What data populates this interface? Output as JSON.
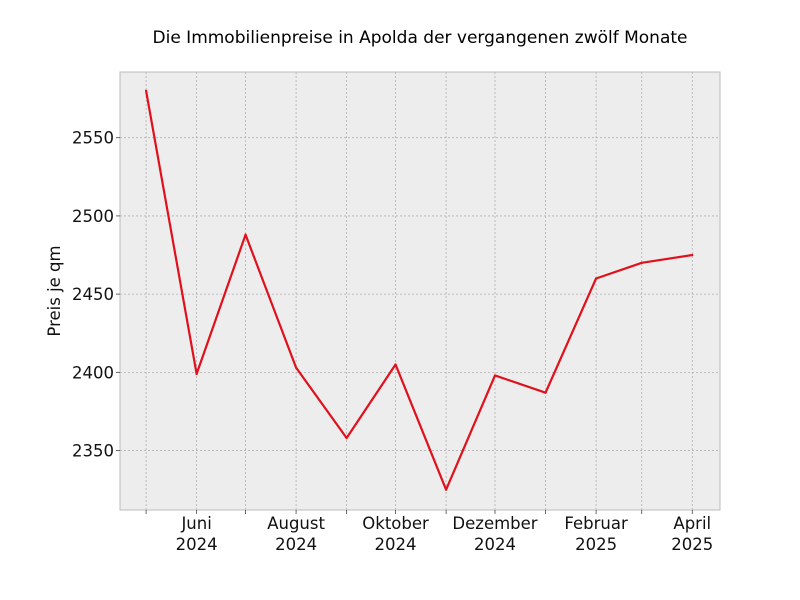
{
  "chart_data": {
    "type": "line",
    "title": "Die Immobilienpreise in Apolda der vergangenen zwölf Monate",
    "xlabel": "",
    "ylabel": "Preis je qm",
    "x": [
      "2024-05",
      "2024-06",
      "2024-07",
      "2024-08",
      "2024-09",
      "2024-10",
      "2024-11",
      "2024-12",
      "2025-01",
      "2025-02",
      "2025-03",
      "2025-04"
    ],
    "series": [
      {
        "values": [
          2580,
          2399,
          2488,
          2403,
          2358,
          2405,
          2325,
          2398,
          2387,
          2460,
          2470,
          2475
        ],
        "color": "#e0101c"
      }
    ],
    "x_tick_labels": [
      {
        "x": "2024-06",
        "line1": "Juni",
        "line2": "2024"
      },
      {
        "x": "2024-08",
        "line1": "August",
        "line2": "2024"
      },
      {
        "x": "2024-10",
        "line1": "Oktober",
        "line2": "2024"
      },
      {
        "x": "2024-12",
        "line1": "Dezember",
        "line2": "2024"
      },
      {
        "x": "2025-02",
        "line1": "Februar",
        "line2": "2025"
      },
      {
        "x": "2025-04",
        "line1": "April",
        "line2": "2025"
      }
    ],
    "y_ticks": [
      2350,
      2400,
      2450,
      2500,
      2550
    ],
    "ylim": [
      2312,
      2592
    ],
    "xlim": [
      "2024-04-15",
      "2025-04-18"
    ],
    "grid": true,
    "legend": "none",
    "colors": {
      "plot_background": "#ededed",
      "grid": "#b0b0b0",
      "frame": "#bcbcbc"
    }
  }
}
